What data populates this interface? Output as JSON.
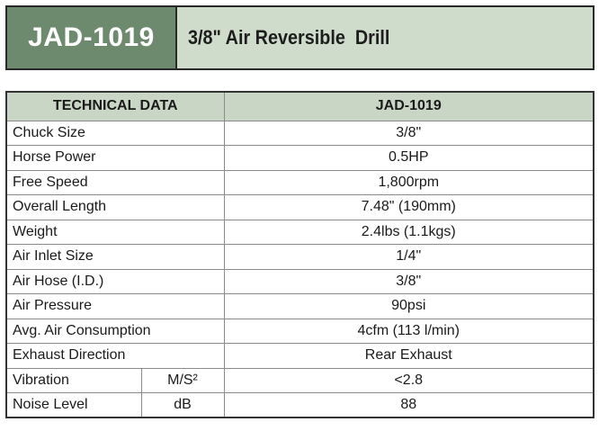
{
  "header": {
    "model": "JAD-1019",
    "title": "3/8\" Air Reversible  Drill"
  },
  "table": {
    "col_header_left": "TECHNICAL DATA",
    "col_header_right": "JAD-1019",
    "rows": [
      {
        "label": "Chuck Size",
        "value": "3/8\""
      },
      {
        "label": "Horse Power",
        "value": "0.5HP"
      },
      {
        "label": "Free Speed",
        "value": "1,800rpm"
      },
      {
        "label": "Overall Length",
        "value": "7.48\" (190mm)"
      },
      {
        "label": "Weight",
        "value": "2.4lbs (1.1kgs)"
      },
      {
        "label": "Air Inlet Size",
        "value": "1/4\""
      },
      {
        "label": "Air Hose (I.D.)",
        "value": "3/8\""
      },
      {
        "label": "Air Pressure",
        "value": "90psi"
      },
      {
        "label": "Avg. Air Consumption",
        "value": "4cfm (113 l/min)"
      },
      {
        "label": "Exhaust Direction",
        "value": "Rear Exhaust"
      }
    ],
    "unit_rows": [
      {
        "label": "Vibration",
        "unit": "M/S²",
        "value": "<2.8"
      },
      {
        "label": "Noise Level",
        "unit": "dB",
        "value": "88"
      }
    ]
  },
  "colors": {
    "model_bg": "#6e8a6e",
    "title_bg": "#cfdccb",
    "table_header_bg": "#c9d6c5"
  }
}
